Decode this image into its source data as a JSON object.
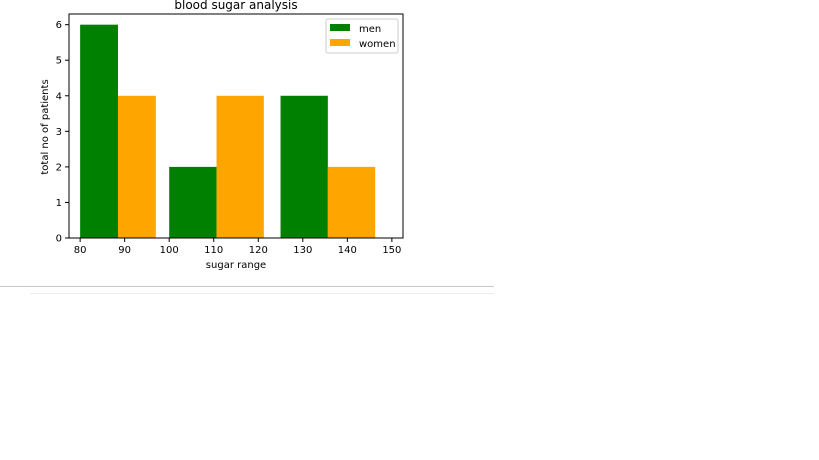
{
  "chart_data": {
    "type": "bar",
    "title": "blood sugar analysis",
    "xlabel": "sugar range",
    "ylabel": "total no of patients",
    "xlim": [
      77.5,
      152.5
    ],
    "ylim": [
      0,
      6.3
    ],
    "xticks": [
      80,
      90,
      100,
      110,
      120,
      130,
      140,
      150
    ],
    "yticks": [
      0,
      1,
      2,
      3,
      4,
      5,
      6
    ],
    "bins": [
      [
        80,
        100
      ],
      [
        100,
        125
      ],
      [
        125,
        150
      ]
    ],
    "series": [
      {
        "name": "men",
        "color": "#008000",
        "values": [
          6,
          2,
          4
        ]
      },
      {
        "name": "women",
        "color": "#ffa500",
        "values": [
          4,
          4,
          2
        ]
      }
    ],
    "legend_position": "top-right",
    "grid": false
  }
}
